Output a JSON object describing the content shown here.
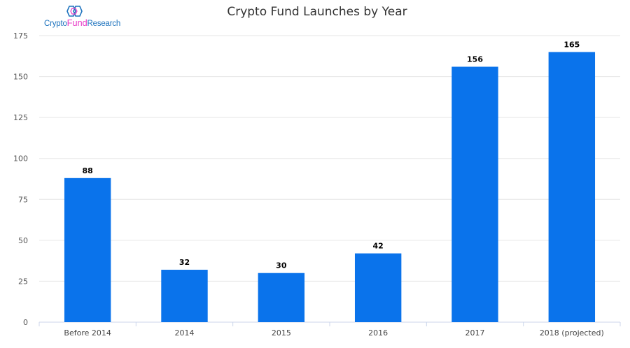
{
  "logo": {
    "part1": "Crypto",
    "part2": "Fund",
    "part3": "Research",
    "icon": "linked-hexagons-icon",
    "color_primary": "#1e73be",
    "color_accent": "#e83ec8"
  },
  "chart_data": {
    "type": "bar",
    "title": "Crypto Fund Launches by Year",
    "xlabel": "",
    "ylabel": "",
    "categories": [
      "Before 2014",
      "2014",
      "2015",
      "2016",
      "2017",
      "2018 (projected)"
    ],
    "values": [
      88,
      32,
      30,
      42,
      156,
      165
    ],
    "data_labels": [
      "88",
      "32",
      "30",
      "42",
      "156",
      "165"
    ],
    "ylim": [
      0,
      175
    ],
    "yticks": [
      0,
      25,
      50,
      75,
      100,
      125,
      150,
      175
    ],
    "grid": true,
    "legend": "none",
    "bar_color": "#0a73eb"
  }
}
